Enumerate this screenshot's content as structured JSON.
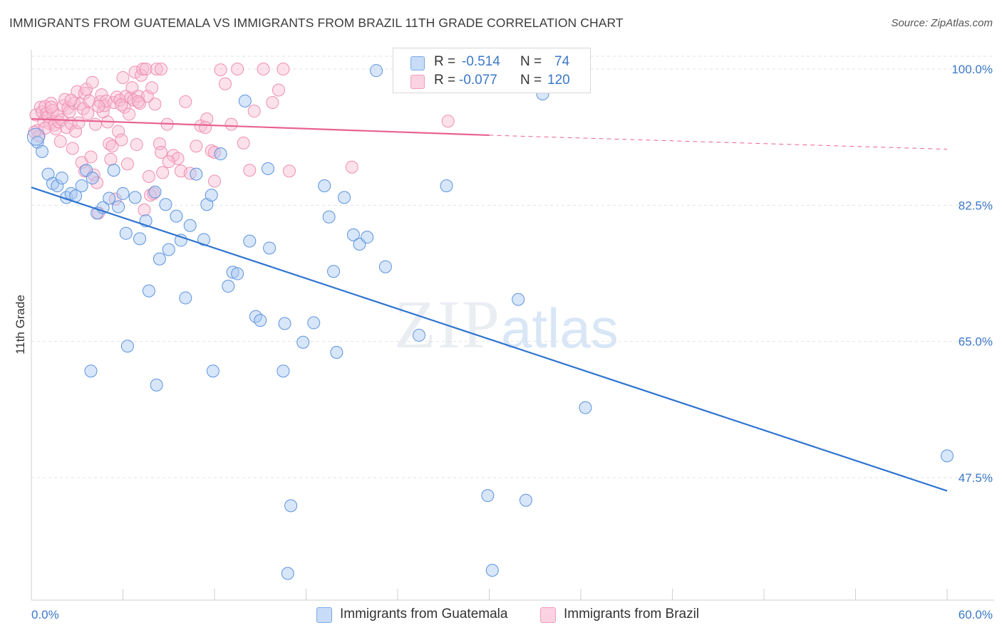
{
  "header": {
    "title": "IMMIGRANTS FROM GUATEMALA VS IMMIGRANTS FROM BRAZIL 11TH GRADE CORRELATION CHART",
    "source": "Source: ZipAtlas.com"
  },
  "watermark": {
    "zip": "ZIP",
    "atlas": "atlas"
  },
  "legend": {
    "rows": [
      {
        "r_label": "R =",
        "r_value": "-0.514",
        "n_label": "N =",
        "n_value": "74",
        "color": "#8fb8ef"
      },
      {
        "r_label": "R =",
        "r_value": "-0.077",
        "n_label": "N =",
        "n_value": "120",
        "color": "#f5a8c4"
      }
    ]
  },
  "bottom_legend": [
    {
      "label": "Immigrants from Guatemala",
      "color": "#8fb8ef"
    },
    {
      "label": "Immigrants from Brazil",
      "color": "#f5a8c4"
    }
  ],
  "colors": {
    "blue_fill": "#a9c8f2",
    "blue_stroke": "#5b93de",
    "blue_line": "#2f74d0",
    "pink_fill": "#f8bcd2",
    "pink_stroke": "#ee8fb2",
    "pink_line": "#e8638f",
    "tick_color": "#3b78c8",
    "grid": "#e2e2e2"
  },
  "chart_data": {
    "type": "scatter",
    "title": "IMMIGRANTS FROM GUATEMALA VS IMMIGRANTS FROM BRAZIL 11TH GRADE CORRELATION CHART",
    "xlabel": "",
    "ylabel": "11th Grade",
    "xlim": [
      0,
      60
    ],
    "ylim": [
      30,
      101.5
    ],
    "x_tick_labels": [
      "0.0%",
      "60.0%"
    ],
    "y_ticks": [
      {
        "value": 100.0,
        "label": "100.0%"
      },
      {
        "value": 82.5,
        "label": "82.5%"
      },
      {
        "value": 65.0,
        "label": "65.0%"
      },
      {
        "value": 47.5,
        "label": "47.5%"
      }
    ],
    "grid": true,
    "legend_placement": "top-center",
    "series": [
      {
        "name": "Immigrants from Guatemala",
        "r": -0.514,
        "n": 74,
        "trend": {
          "x": [
            0,
            60
          ],
          "y": [
            84.8,
            45.8
          ],
          "dashed_from": null
        },
        "points": [
          [
            0.4,
            90.6
          ],
          [
            0.7,
            89.4
          ],
          [
            1.1,
            86.5
          ],
          [
            1.4,
            85.3
          ],
          [
            1.7,
            85.0
          ],
          [
            2.0,
            86.0
          ],
          [
            2.3,
            83.5
          ],
          [
            2.6,
            84.0
          ],
          [
            2.9,
            83.7
          ],
          [
            3.3,
            85.0
          ],
          [
            3.6,
            87.0
          ],
          [
            4.0,
            86.0
          ],
          [
            4.3,
            81.5
          ],
          [
            4.7,
            82.2
          ],
          [
            5.1,
            83.4
          ],
          [
            5.4,
            87.0
          ],
          [
            5.7,
            82.3
          ],
          [
            6.0,
            84.0
          ],
          [
            6.2,
            78.9
          ],
          [
            6.8,
            83.5
          ],
          [
            7.1,
            78.2
          ],
          [
            7.5,
            80.5
          ],
          [
            7.7,
            71.5
          ],
          [
            8.1,
            84.2
          ],
          [
            8.4,
            75.6
          ],
          [
            8.8,
            82.6
          ],
          [
            9.0,
            76.8
          ],
          [
            9.5,
            81.1
          ],
          [
            9.8,
            78.0
          ],
          [
            10.1,
            70.6
          ],
          [
            10.4,
            79.9
          ],
          [
            10.8,
            86.5
          ],
          [
            11.3,
            78.1
          ],
          [
            11.5,
            82.6
          ],
          [
            11.8,
            83.8
          ],
          [
            12.4,
            89.1
          ],
          [
            12.9,
            72.1
          ],
          [
            13.2,
            73.9
          ],
          [
            13.5,
            73.7
          ],
          [
            14.0,
            95.9
          ],
          [
            14.3,
            77.9
          ],
          [
            14.7,
            68.2
          ],
          [
            15.0,
            67.7
          ],
          [
            15.5,
            87.2
          ],
          [
            15.6,
            77.0
          ],
          [
            16.5,
            61.2
          ],
          [
            16.6,
            67.3
          ],
          [
            16.8,
            35.2
          ],
          [
            17.0,
            43.9
          ],
          [
            17.8,
            64.9
          ],
          [
            18.5,
            67.4
          ],
          [
            19.2,
            85.0
          ],
          [
            19.5,
            81.0
          ],
          [
            19.8,
            74.0
          ],
          [
            20.0,
            63.6
          ],
          [
            20.5,
            83.5
          ],
          [
            21.1,
            78.7
          ],
          [
            21.5,
            77.5
          ],
          [
            22.0,
            78.4
          ],
          [
            22.6,
            99.8
          ],
          [
            23.2,
            74.6
          ],
          [
            25.4,
            65.8
          ],
          [
            27.2,
            85.0
          ],
          [
            29.9,
            45.2
          ],
          [
            30.2,
            35.6
          ],
          [
            31.9,
            70.4
          ],
          [
            32.4,
            44.6
          ],
          [
            33.5,
            96.8
          ],
          [
            36.3,
            56.5
          ],
          [
            60.0,
            50.3
          ],
          [
            3.9,
            61.2
          ],
          [
            6.3,
            64.4
          ],
          [
            8.2,
            59.4
          ],
          [
            11.9,
            61.2
          ]
        ]
      },
      {
        "name": "Immigrants from Brazil",
        "r": -0.077,
        "n": 120,
        "trend": {
          "x": [
            0,
            30,
            60
          ],
          "y": [
            93.6,
            91.5,
            89.7
          ],
          "dashed_from": 30
        },
        "points": [
          [
            0.3,
            94.1
          ],
          [
            0.4,
            92.1
          ],
          [
            0.5,
            91.4
          ],
          [
            0.6,
            95.1
          ],
          [
            0.7,
            94.5
          ],
          [
            0.8,
            93.3
          ],
          [
            0.9,
            95.2
          ],
          [
            1.0,
            94.3
          ],
          [
            1.1,
            93.9
          ],
          [
            1.2,
            93.0
          ],
          [
            1.3,
            95.6
          ],
          [
            1.4,
            94.7
          ],
          [
            1.5,
            92.8
          ],
          [
            1.6,
            92.3
          ],
          [
            1.7,
            94.0
          ],
          [
            1.8,
            93.2
          ],
          [
            1.9,
            90.7
          ],
          [
            2.0,
            93.5
          ],
          [
            2.1,
            95.3
          ],
          [
            2.2,
            96.1
          ],
          [
            2.3,
            92.5
          ],
          [
            2.4,
            95.0
          ],
          [
            2.5,
            94.5
          ],
          [
            2.6,
            93.0
          ],
          [
            2.7,
            89.8
          ],
          [
            2.8,
            95.6
          ],
          [
            2.9,
            92.0
          ],
          [
            3.0,
            97.1
          ],
          [
            3.1,
            93.1
          ],
          [
            3.2,
            95.5
          ],
          [
            3.3,
            88.0
          ],
          [
            3.4,
            94.9
          ],
          [
            3.5,
            96.9
          ],
          [
            3.6,
            97.4
          ],
          [
            3.7,
            94.3
          ],
          [
            3.8,
            95.9
          ],
          [
            3.9,
            88.7
          ],
          [
            4.0,
            98.3
          ],
          [
            4.1,
            86.4
          ],
          [
            4.2,
            92.9
          ],
          [
            4.3,
            85.4
          ],
          [
            4.4,
            81.5
          ],
          [
            4.5,
            95.8
          ],
          [
            4.6,
            96.7
          ],
          [
            4.7,
            94.5
          ],
          [
            4.8,
            95.3
          ],
          [
            4.9,
            95.9
          ],
          [
            5.0,
            93.2
          ],
          [
            5.1,
            90.4
          ],
          [
            5.2,
            88.4
          ],
          [
            5.3,
            90.1
          ],
          [
            5.4,
            95.7
          ],
          [
            5.5,
            83.3
          ],
          [
            5.6,
            96.4
          ],
          [
            5.7,
            92.0
          ],
          [
            5.8,
            96.0
          ],
          [
            5.9,
            90.9
          ],
          [
            6.0,
            98.9
          ],
          [
            6.1,
            95.1
          ],
          [
            6.2,
            96.5
          ],
          [
            6.3,
            87.8
          ],
          [
            6.4,
            94.2
          ],
          [
            6.5,
            96.3
          ],
          [
            6.6,
            97.6
          ],
          [
            6.7,
            96.0
          ],
          [
            6.8,
            99.6
          ],
          [
            6.9,
            90.3
          ],
          [
            7.0,
            96.5
          ],
          [
            7.1,
            95.6
          ],
          [
            7.2,
            99.2
          ],
          [
            7.3,
            100.0
          ],
          [
            7.4,
            81.9
          ],
          [
            7.5,
            100.0
          ],
          [
            7.6,
            96.5
          ],
          [
            7.7,
            86.2
          ],
          [
            7.8,
            83.8
          ],
          [
            7.9,
            97.6
          ],
          [
            8.0,
            84.0
          ],
          [
            8.1,
            95.5
          ],
          [
            8.2,
            100.0
          ],
          [
            8.4,
            90.4
          ],
          [
            8.5,
            89.3
          ],
          [
            8.6,
            86.7
          ],
          [
            8.9,
            92.9
          ],
          [
            9.3,
            88.9
          ],
          [
            9.6,
            88.5
          ],
          [
            9.8,
            86.9
          ],
          [
            10.1,
            95.8
          ],
          [
            10.4,
            86.6
          ],
          [
            10.8,
            90.1
          ],
          [
            11.1,
            92.7
          ],
          [
            11.5,
            93.6
          ],
          [
            11.8,
            89.5
          ],
          [
            12.0,
            85.6
          ],
          [
            12.4,
            99.9
          ],
          [
            12.7,
            98.1
          ],
          [
            13.1,
            92.9
          ],
          [
            13.5,
            100.0
          ],
          [
            13.9,
            90.5
          ],
          [
            14.3,
            87.0
          ],
          [
            14.6,
            94.6
          ],
          [
            15.2,
            100.0
          ],
          [
            15.8,
            95.7
          ],
          [
            16.2,
            97.3
          ],
          [
            16.5,
            100.0
          ],
          [
            16.9,
            86.9
          ],
          [
            21.0,
            87.4
          ],
          [
            27.3,
            93.3
          ],
          [
            0.2,
            91.9
          ],
          [
            0.9,
            92.4
          ],
          [
            2.6,
            96.0
          ],
          [
            4.4,
            95.2
          ],
          [
            5.9,
            95.4
          ],
          [
            7.0,
            95.8
          ],
          [
            8.5,
            100.0
          ],
          [
            3.5,
            86.9
          ],
          [
            1.3,
            95.1
          ],
          [
            9.0,
            88.1
          ],
          [
            11.4,
            92.5
          ],
          [
            12.0,
            89.3
          ]
        ]
      }
    ]
  }
}
